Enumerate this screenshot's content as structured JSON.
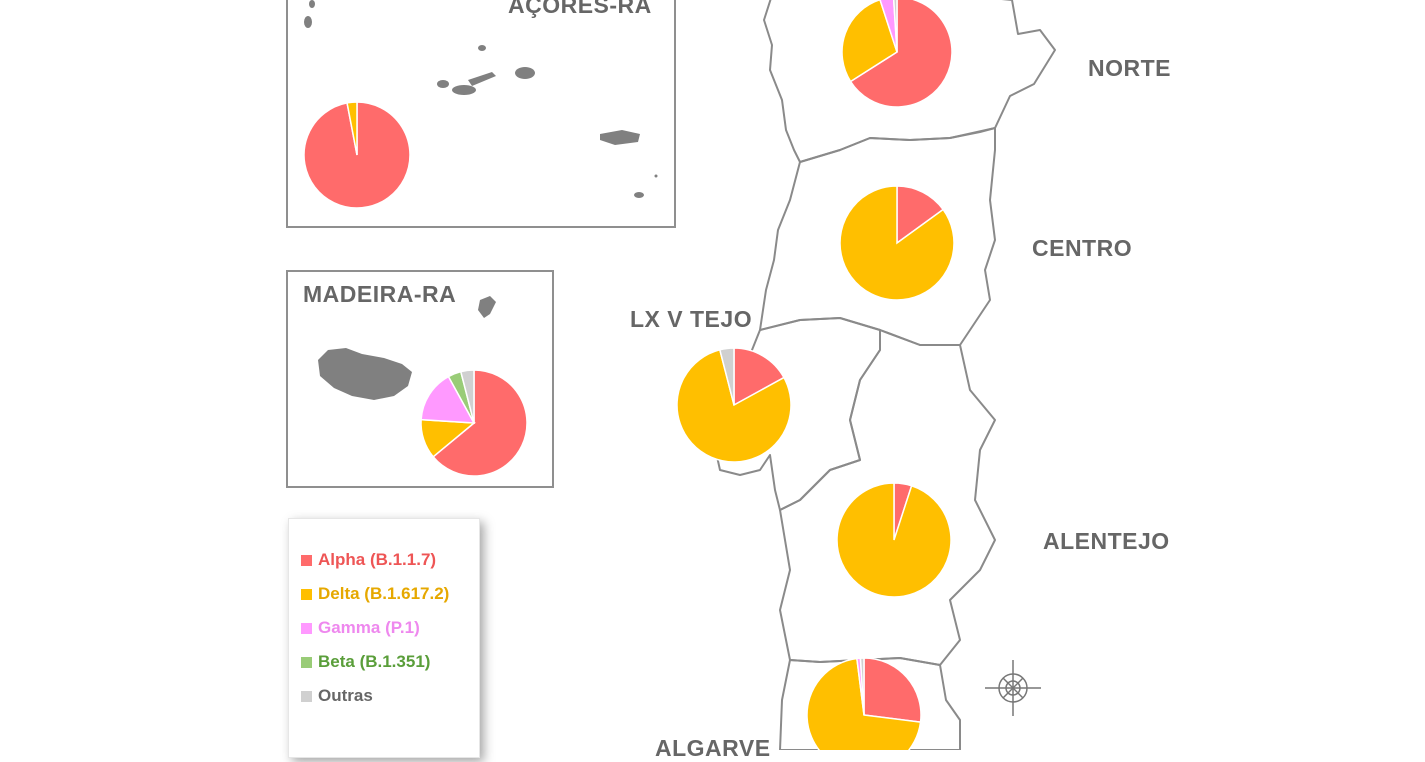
{
  "colors": {
    "alpha": "#ff6b6b",
    "delta": "#ffbf00",
    "gamma": "#ff99ff",
    "beta": "#99cc77",
    "outras": "#d0d0d0",
    "outline": "#8a8a8a",
    "island": "#808080"
  },
  "regions": {
    "acores": "AÇORES-RA",
    "madeira": "MADEIRA-RA",
    "norte": "NORTE",
    "centro": "CENTRO",
    "lxvtejo": "LX V TEJO",
    "alentejo": "ALENTEJO",
    "algarve": "ALGARVE"
  },
  "legend": [
    {
      "key": "alpha",
      "label": "Alpha (B.1.1.7)",
      "color": "#ff6b6b",
      "text_color": "#ee5555"
    },
    {
      "key": "delta",
      "label": "Delta (B.1.617.2)",
      "color": "#ffbf00",
      "text_color": "#e6a800"
    },
    {
      "key": "gamma",
      "label": "Gamma (P.1)",
      "color": "#ff99ff",
      "text_color": "#ee88ee"
    },
    {
      "key": "beta",
      "label": "Beta (B.1.351)",
      "color": "#99cc77",
      "text_color": "#5a9e3a"
    },
    {
      "key": "outras",
      "label": "Outras",
      "color": "#d0d0d0",
      "text_color": "#666666"
    }
  ],
  "chart_data": {
    "type": "pie",
    "series_order": [
      "Alpha (B.1.1.7)",
      "Delta (B.1.617.2)",
      "Gamma (P.1)",
      "Beta (B.1.351)",
      "Outras"
    ],
    "regions": [
      {
        "region": "AÇORES-RA",
        "values": [
          97,
          3,
          0,
          0,
          0
        ]
      },
      {
        "region": "MADEIRA-RA",
        "values": [
          64,
          12,
          16,
          4,
          4
        ]
      },
      {
        "region": "NORTE",
        "values": [
          66,
          29,
          4,
          0,
          1
        ]
      },
      {
        "region": "CENTRO",
        "values": [
          15,
          85,
          0,
          0,
          0
        ]
      },
      {
        "region": "LX V TEJO",
        "values": [
          17,
          79,
          0,
          0,
          4
        ]
      },
      {
        "region": "ALENTEJO",
        "values": [
          5,
          95,
          0,
          0,
          0
        ]
      },
      {
        "region": "ALGARVE",
        "values": [
          27,
          71,
          1,
          0,
          1
        ]
      }
    ]
  }
}
